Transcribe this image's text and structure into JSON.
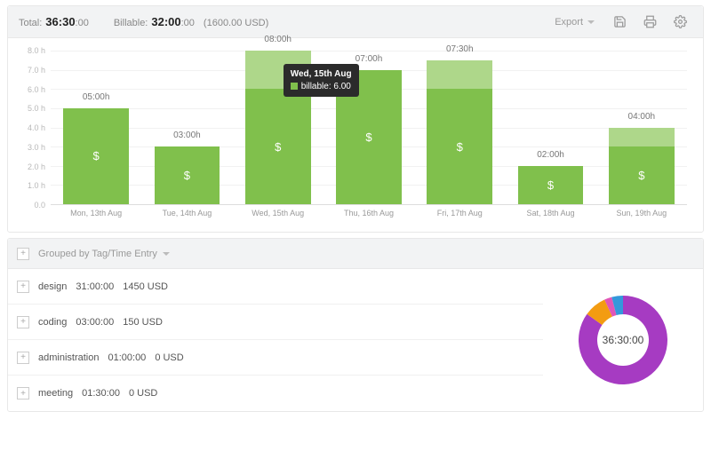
{
  "header": {
    "total_label": "Total:",
    "total_hours": "36:30",
    "total_seconds": ":00",
    "billable_label": "Billable:",
    "billable_hours": "32:00",
    "billable_seconds": ":00",
    "amount": "(1600.00 USD)",
    "export_label": "Export"
  },
  "chart": {
    "type": "bar",
    "y_max": 8,
    "y_ticks": [
      0,
      1,
      2,
      3,
      4,
      5,
      6,
      7,
      8
    ],
    "y_tick_labels": [
      "0.0",
      "1.0 h",
      "2.0 h",
      "3.0 h",
      "4.0 h",
      "5.0 h",
      "6.0 h",
      "7.0 h",
      "8.0 h"
    ],
    "billable_color": "#80c04c",
    "nonbillable_color": "#aed78a",
    "background_color": "#ffffff",
    "grid_color": "#f1f1f1",
    "axis_color": "#dddddd",
    "label_color": "#777777",
    "tick_color": "#b8b8b8",
    "bar_width_pct": 72,
    "bars": [
      {
        "x": "Mon, 13th Aug",
        "label": "05:00h",
        "total": 5.0,
        "billable": 5.0
      },
      {
        "x": "Tue, 14th Aug",
        "label": "03:00h",
        "total": 3.0,
        "billable": 3.0
      },
      {
        "x": "Wed, 15th Aug",
        "label": "08:00h",
        "total": 8.0,
        "billable": 6.0
      },
      {
        "x": "Thu, 16th Aug",
        "label": "07:00h",
        "total": 7.0,
        "billable": 7.0
      },
      {
        "x": "Fri, 17th Aug",
        "label": "07:30h",
        "total": 7.5,
        "billable": 6.0
      },
      {
        "x": "Sat, 18th Aug",
        "label": "02:00h",
        "total": 2.0,
        "billable": 2.0
      },
      {
        "x": "Sun, 19th Aug",
        "label": "04:00h",
        "total": 4.0,
        "billable": 3.0
      }
    ],
    "tooltip": {
      "title": "Wed, 15th Aug",
      "series_label": "billable",
      "series_value": "6.00",
      "swatch_color": "#80c04c"
    }
  },
  "grouping": {
    "label": "Grouped by Tag/Time Entry",
    "rows": [
      {
        "name": "design",
        "time": "31:00:00",
        "amount": "1450 USD"
      },
      {
        "name": "coding",
        "time": "03:00:00",
        "amount": "150 USD"
      },
      {
        "name": "administration",
        "time": "01:00:00",
        "amount": "0 USD"
      },
      {
        "name": "meeting",
        "time": "01:30:00",
        "amount": "0 USD"
      }
    ]
  },
  "donut": {
    "center": "36:30:00",
    "total_minutes": 2190,
    "hole_ratio": 0.58,
    "slices": [
      {
        "label": "design",
        "minutes": 1860,
        "color": "#a63bc2"
      },
      {
        "label": "coding",
        "minutes": 180,
        "color": "#f39c12"
      },
      {
        "label": "administration",
        "minutes": 60,
        "color": "#e056b8"
      },
      {
        "label": "meeting",
        "minutes": 90,
        "color": "#3498db"
      }
    ]
  }
}
